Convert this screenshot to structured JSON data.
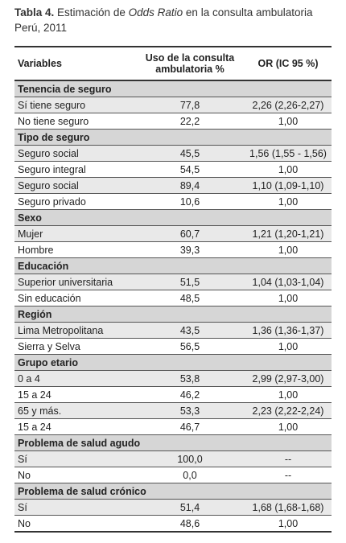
{
  "title": {
    "label": "Tabla 4.",
    "text_before": "Estimación de",
    "italic": "Odds Ratio",
    "text_after": "en la consulta ambulatoria Perú, 2011"
  },
  "table": {
    "header": [
      "Variables",
      "Uso de la consulta ambulatoria %",
      "OR (IC 95 %)"
    ],
    "sections": [
      {
        "title": "Tenencia de seguro",
        "rows": [
          [
            "Sí tiene seguro",
            "77,8",
            "2,26 (2,26-2,27)"
          ],
          [
            "No tiene seguro",
            "22,2",
            "1,00"
          ]
        ]
      },
      {
        "title": "Tipo de seguro",
        "rows": [
          [
            "Seguro social",
            "45,5",
            "1,56 (1,55 - 1,56)"
          ],
          [
            "Seguro integral",
            "54,5",
            "1,00"
          ],
          [
            "Seguro social",
            "89,4",
            "1,10 (1,09-1,10)"
          ],
          [
            "Seguro privado",
            "10,6",
            "1,00"
          ]
        ]
      },
      {
        "title": "Sexo",
        "rows": [
          [
            "Mujer",
            "60,7",
            "1,21 (1,20-1,21)"
          ],
          [
            "Hombre",
            "39,3",
            "1,00"
          ]
        ]
      },
      {
        "title": "Educación",
        "rows": [
          [
            "Superior universitaria",
            "51,5",
            "1,04 (1,03-1,04)"
          ],
          [
            "Sin educación",
            "48,5",
            "1,00"
          ]
        ]
      },
      {
        "title": "Región",
        "rows": [
          [
            "Lima Metropolitana",
            "43,5",
            "1,36 (1,36-1,37)"
          ],
          [
            "Sierra y Selva",
            "56,5",
            "1,00"
          ]
        ]
      },
      {
        "title": "Grupo etario",
        "rows": [
          [
            "0 a 4",
            "53,8",
            "2,99 (2,97-3,00)"
          ],
          [
            "15 a 24",
            "46,2",
            "1,00"
          ],
          [
            "65 y más.",
            "53,3",
            "2,23 (2,22-2,24)"
          ],
          [
            "15 a 24",
            "46,7",
            "1,00"
          ]
        ]
      },
      {
        "title": "Problema de salud agudo",
        "rows": [
          [
            "Sí",
            "100,0",
            "--"
          ],
          [
            "No",
            "0,0",
            "--"
          ]
        ]
      },
      {
        "title": "Problema de salud crónico",
        "rows": [
          [
            "Sí",
            "51,4",
            "1,68 (1,68-1,68)"
          ],
          [
            "No",
            "48,6",
            "1,00"
          ]
        ]
      }
    ]
  }
}
